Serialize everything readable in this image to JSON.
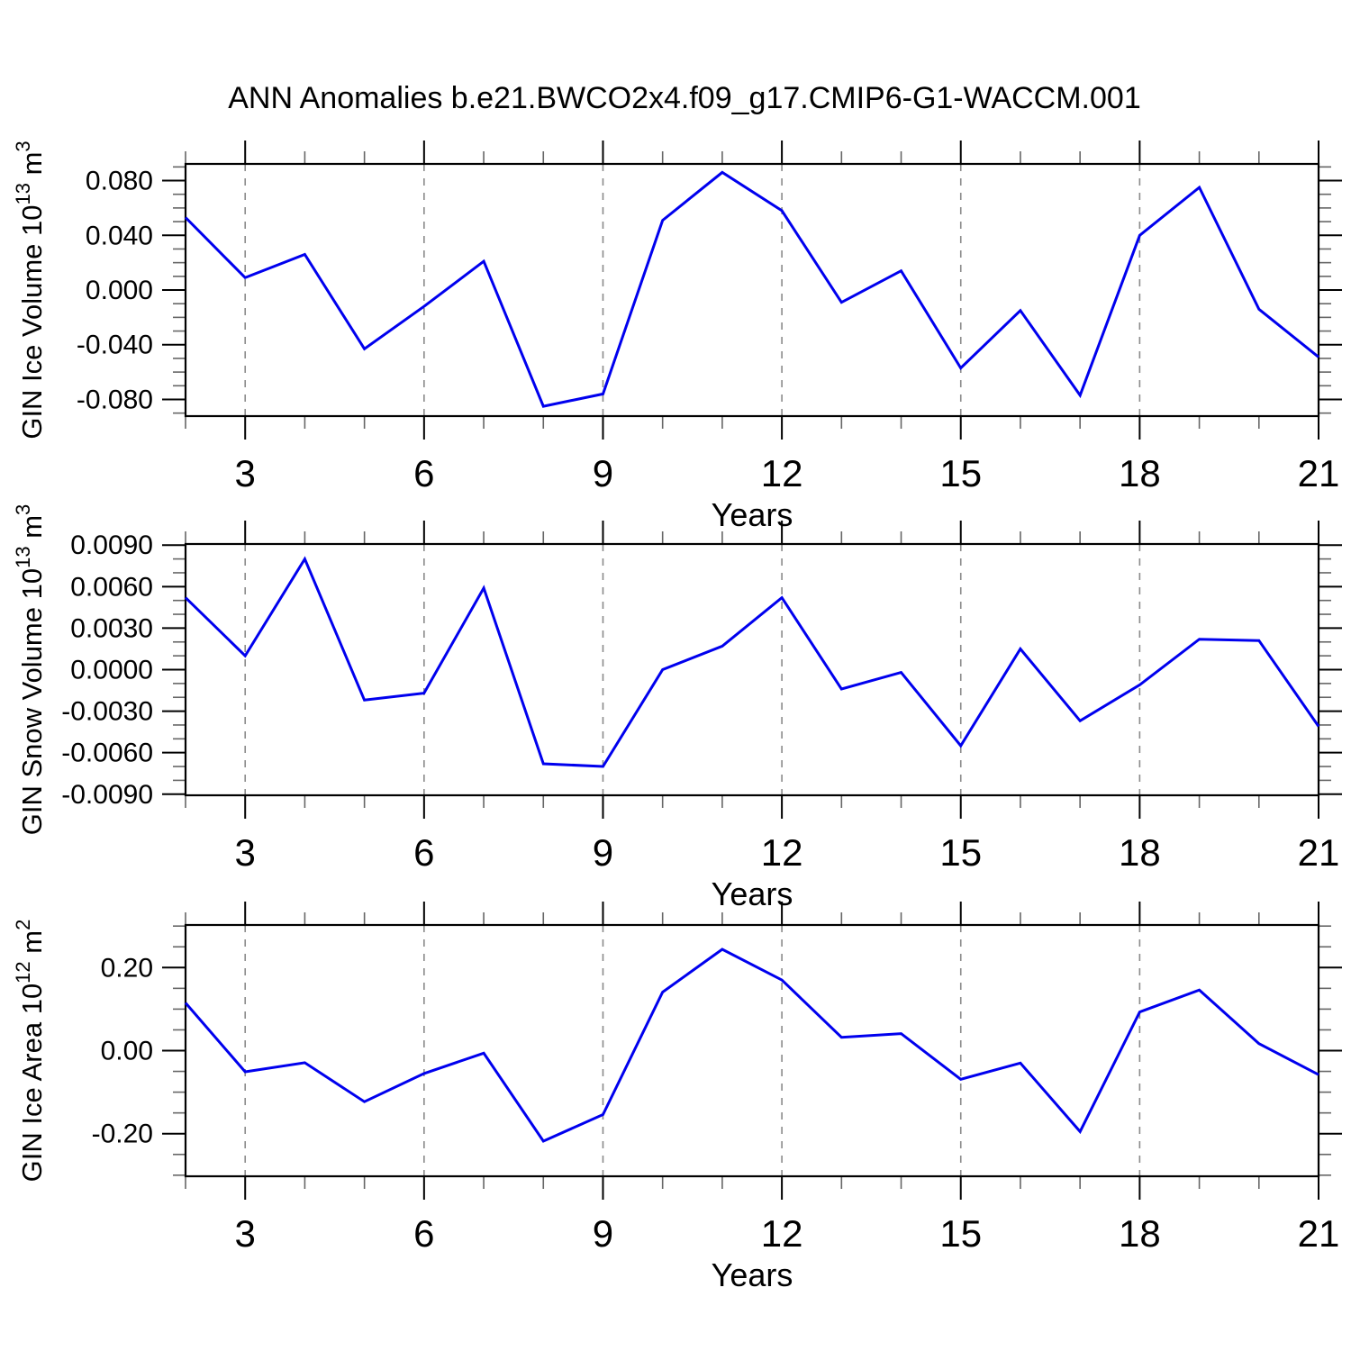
{
  "title": "ANN Anomalies b.e21.BWCO2x4.f09_g17.CMIP6-G1-WACCM.001",
  "style": {
    "line_color": "#0000ee",
    "grid_color": "#8a8a8a",
    "frame_color": "#000000",
    "minor_tick_color": "#666666"
  },
  "chart_data": [
    {
      "type": "line",
      "name": "gin-ice-volume",
      "ylabel": "GIN Ice Volume 10^13 m^3",
      "ylabel_parts": [
        {
          "t": "GIN Ice Volume 10"
        },
        {
          "t": "13",
          "sup": true
        },
        {
          "t": " m"
        },
        {
          "t": "3",
          "sup": true
        }
      ],
      "xlabel": "Years",
      "x": [
        2,
        3,
        4,
        5,
        6,
        7,
        8,
        9,
        10,
        11,
        12,
        13,
        14,
        15,
        16,
        17,
        18,
        19,
        20,
        21
      ],
      "values": [
        0.053,
        0.009,
        0.026,
        -0.043,
        -0.012,
        0.021,
        -0.085,
        -0.076,
        0.051,
        0.086,
        0.058,
        -0.009,
        0.014,
        -0.057,
        -0.015,
        -0.077,
        0.04,
        0.075,
        -0.014,
        -0.049
      ],
      "xlim": [
        2,
        21
      ],
      "ylim": [
        -0.0922,
        0.0922
      ],
      "yticks": [
        {
          "v": 0.08,
          "label": "0.080"
        },
        {
          "v": 0.04,
          "label": "0.040"
        },
        {
          "v": 0.0,
          "label": "0.000"
        },
        {
          "v": -0.04,
          "label": "-0.040"
        },
        {
          "v": -0.08,
          "label": "-0.080"
        }
      ],
      "ytick_minor_step": 0.01,
      "xticks": [
        3,
        6,
        9,
        12,
        15,
        18,
        21
      ],
      "xtick_minor_step": 1,
      "gridlines_x": [
        3,
        6,
        9,
        12,
        15,
        18
      ],
      "grid": true,
      "legend": null
    },
    {
      "type": "line",
      "name": "gin-snow-volume",
      "ylabel": "GIN Snow Volume 10^13 m^3",
      "ylabel_parts": [
        {
          "t": "GIN Snow Volume 10"
        },
        {
          "t": "13",
          "sup": true
        },
        {
          "t": " m"
        },
        {
          "t": "3",
          "sup": true
        }
      ],
      "xlabel": "Years",
      "x": [
        2,
        3,
        4,
        5,
        6,
        7,
        8,
        9,
        10,
        11,
        12,
        13,
        14,
        15,
        16,
        17,
        18,
        19,
        20,
        21
      ],
      "values": [
        0.0052,
        0.001,
        0.008,
        -0.0022,
        -0.0017,
        0.0059,
        -0.0068,
        -0.007,
        0.0,
        0.0017,
        0.0052,
        -0.0014,
        -0.0002,
        -0.0055,
        0.0015,
        -0.0037,
        -0.0011,
        0.0022,
        0.0021,
        -0.0041
      ],
      "xlim": [
        2,
        21
      ],
      "ylim": [
        -0.00908,
        0.00908
      ],
      "yticks": [
        {
          "v": 0.009,
          "label": "0.0090"
        },
        {
          "v": 0.006,
          "label": "0.0060"
        },
        {
          "v": 0.003,
          "label": "0.0030"
        },
        {
          "v": 0.0,
          "label": "0.0000"
        },
        {
          "v": -0.003,
          "label": "-0.0030"
        },
        {
          "v": -0.006,
          "label": "-0.0060"
        },
        {
          "v": -0.009,
          "label": "-0.0090"
        }
      ],
      "ytick_minor_step": 0.001,
      "xticks": [
        3,
        6,
        9,
        12,
        15,
        18,
        21
      ],
      "xtick_minor_step": 1,
      "gridlines_x": [
        3,
        6,
        9,
        12,
        15,
        18
      ],
      "grid": true,
      "legend": null
    },
    {
      "type": "line",
      "name": "gin-ice-area",
      "ylabel": "GIN Ice Area 10^12 m^2",
      "ylabel_parts": [
        {
          "t": "GIN Ice Area 10"
        },
        {
          "t": "12",
          "sup": true
        },
        {
          "t": " m"
        },
        {
          "t": "2",
          "sup": true
        }
      ],
      "xlabel": "Years",
      "x": [
        2,
        3,
        4,
        5,
        6,
        7,
        8,
        9,
        10,
        11,
        12,
        13,
        14,
        15,
        16,
        17,
        18,
        19,
        20,
        21
      ],
      "values": [
        0.115,
        -0.051,
        -0.029,
        -0.123,
        -0.055,
        -0.006,
        -0.218,
        -0.154,
        0.141,
        0.244,
        0.17,
        0.032,
        0.041,
        -0.069,
        -0.03,
        -0.195,
        0.093,
        0.146,
        0.017,
        -0.058
      ],
      "xlim": [
        2,
        21
      ],
      "ylim": [
        -0.3026,
        0.3026
      ],
      "yticks": [
        {
          "v": 0.2,
          "label": "0.20"
        },
        {
          "v": 0.0,
          "label": "0.00"
        },
        {
          "v": -0.2,
          "label": "-0.20"
        }
      ],
      "ytick_minor_step": 0.05,
      "xticks": [
        3,
        6,
        9,
        12,
        15,
        18,
        21
      ],
      "xtick_minor_step": 1,
      "gridlines_x": [
        3,
        6,
        9,
        12,
        15,
        18
      ],
      "grid": true,
      "legend": null
    }
  ]
}
